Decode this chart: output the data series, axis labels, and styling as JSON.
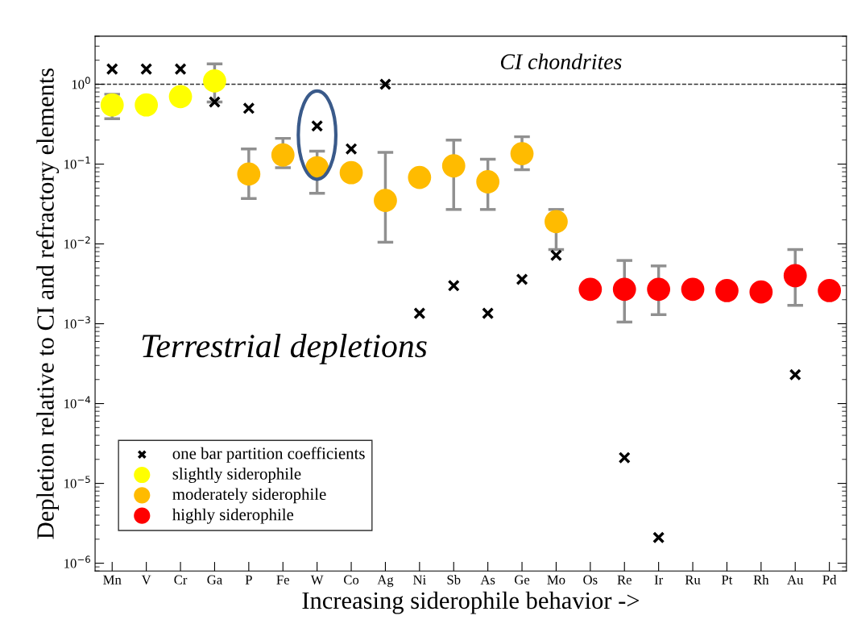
{
  "chart_data": {
    "type": "scatter",
    "xlabel": "Increasing siderophile behavior ->",
    "ylabel": "Depletion relative to CI and refractory elements",
    "categories": [
      "Mn",
      "V",
      "Cr",
      "Ga",
      "P",
      "Fe",
      "W",
      "Co",
      "Ag",
      "Ni",
      "Sb",
      "As",
      "Ge",
      "Mo",
      "Os",
      "Re",
      "Ir",
      "Ru",
      "Pt",
      "Rh",
      "Au",
      "Pd"
    ],
    "log": true,
    "ylim": [
      8e-07,
      4
    ],
    "yticks": [
      {
        "value": 1e-06,
        "label": "10$^{−6}$"
      },
      {
        "value": 1e-05,
        "label": "10$^{−5}$"
      },
      {
        "value": 0.0001,
        "label": "10$^{−4}$"
      },
      {
        "value": 0.001,
        "label": "10$^{−3}$"
      },
      {
        "value": 0.01,
        "label": "10$^{−2}$"
      },
      {
        "value": 0.1,
        "label": "10$^{−1}$"
      },
      {
        "value": 1,
        "label": "10$^{0}$"
      }
    ],
    "grid": false,
    "legend": "bottom left",
    "series": [
      {
        "name": "one bar partition coefficients",
        "marker": "cross",
        "color": "#000000",
        "values": [
          1.55,
          1.55,
          1.55,
          0.6,
          0.5,
          null,
          0.3,
          0.155,
          1.0,
          0.00135,
          0.003,
          0.00135,
          0.0036,
          0.0072,
          null,
          2.1e-05,
          2.1e-06,
          null,
          null,
          null,
          0.00023,
          null
        ]
      },
      {
        "name": "slightly siderophile",
        "marker": "circle",
        "color": "#ffff00",
        "values": [
          0.55,
          0.55,
          0.7,
          1.1,
          null,
          null,
          null,
          null,
          null,
          null,
          null,
          null,
          null,
          null,
          null,
          null,
          null,
          null,
          null,
          null,
          null,
          null
        ],
        "errors": [
          [
            0.37,
            0.75
          ],
          null,
          null,
          [
            0.6,
            1.8
          ],
          null,
          null,
          null,
          null,
          null,
          null,
          null,
          null,
          null,
          null,
          null,
          null,
          null,
          null,
          null,
          null,
          null,
          null
        ]
      },
      {
        "name": "moderately siderophile",
        "marker": "circle",
        "color": "#ffbb00",
        "values": [
          null,
          null,
          null,
          null,
          0.075,
          0.13,
          0.09,
          0.078,
          0.035,
          0.068,
          0.095,
          0.06,
          0.135,
          0.019,
          null,
          null,
          null,
          null,
          null,
          null,
          null,
          null
        ],
        "errors": [
          null,
          null,
          null,
          null,
          [
            0.037,
            0.155
          ],
          [
            0.09,
            0.21
          ],
          [
            0.043,
            0.145
          ],
          null,
          [
            0.0105,
            0.14
          ],
          null,
          [
            0.027,
            0.2
          ],
          [
            0.027,
            0.115
          ],
          [
            0.085,
            0.22
          ],
          [
            0.0085,
            0.027
          ],
          null,
          null,
          null,
          null,
          null,
          null,
          null,
          null
        ]
      },
      {
        "name": "highly siderophile",
        "marker": "circle",
        "color": "#ff0000",
        "values": [
          null,
          null,
          null,
          null,
          null,
          null,
          null,
          null,
          null,
          null,
          null,
          null,
          null,
          null,
          0.0027,
          0.0027,
          0.0027,
          0.0027,
          0.0026,
          0.0025,
          0.004,
          0.0026
        ],
        "errors": [
          null,
          null,
          null,
          null,
          null,
          null,
          null,
          null,
          null,
          null,
          null,
          null,
          null,
          null,
          null,
          [
            0.00105,
            0.0062
          ],
          [
            0.0013,
            0.0053
          ],
          null,
          null,
          null,
          [
            0.0017,
            0.0085
          ],
          null
        ]
      }
    ],
    "ref_lines": [
      {
        "axis": "y",
        "value": 1,
        "label": "CI chondrites",
        "color": "#333333",
        "line_style": "dashed"
      }
    ],
    "annotations": [
      "Terrestrial depletions"
    ]
  }
}
